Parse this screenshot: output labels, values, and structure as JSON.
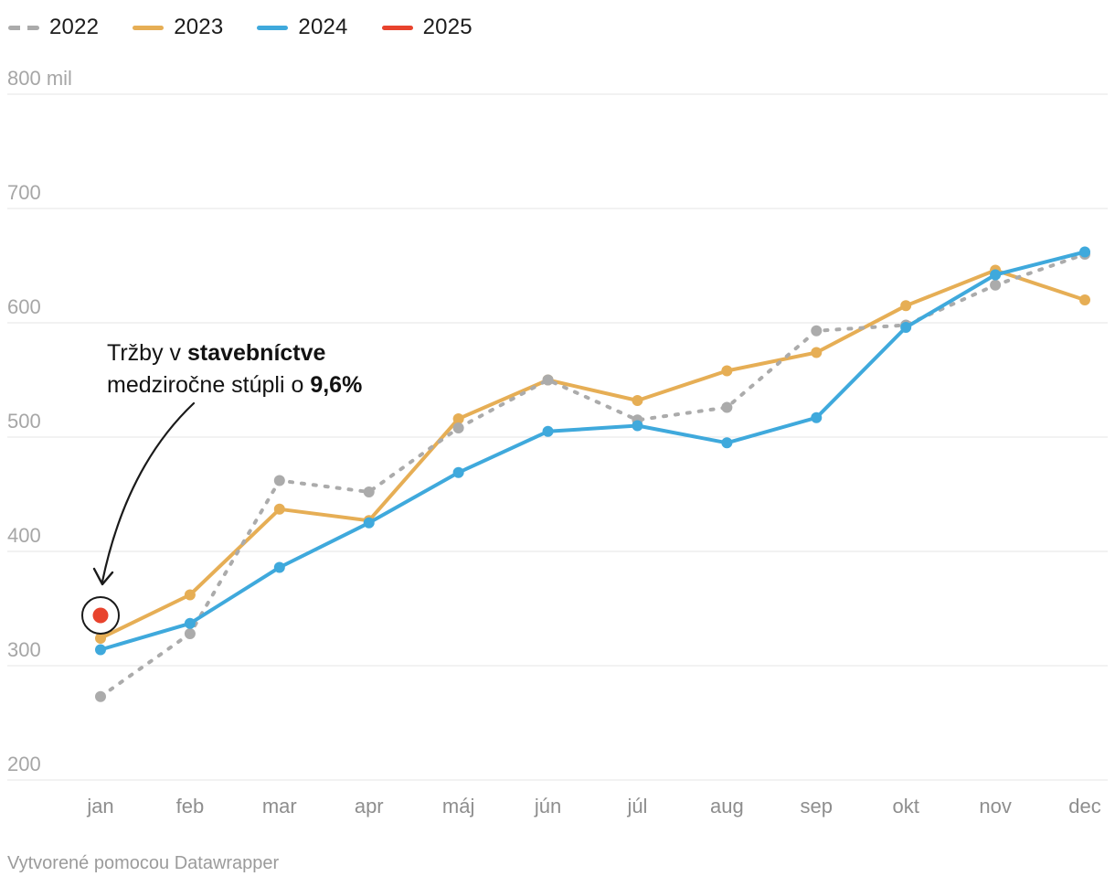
{
  "legend": {
    "items": [
      {
        "label": "2022",
        "color": "#ababab",
        "style": "dashed"
      },
      {
        "label": "2023",
        "color": "#e6ae55",
        "style": "solid"
      },
      {
        "label": "2024",
        "color": "#3fa9dc",
        "style": "solid"
      },
      {
        "label": "2025",
        "color": "#e8432d",
        "style": "solid"
      }
    ]
  },
  "annotation": {
    "line1_normal": "Tržby v ",
    "line1_bold": "stavebníctve",
    "line2_normal": "medziročne stúpli o ",
    "line2_bold": "9,6%"
  },
  "footer": {
    "text": "Vytvorené pomocou Datawrapper"
  },
  "chart_data": {
    "type": "line",
    "title": "",
    "xlabel": "",
    "ylabel": "",
    "unit": "mil",
    "categories": [
      "jan",
      "feb",
      "mar",
      "apr",
      "máj",
      "jún",
      "júl",
      "aug",
      "sep",
      "okt",
      "nov",
      "dec"
    ],
    "y_axis": {
      "tick_values": [
        800,
        700,
        600,
        500,
        400,
        300,
        200
      ],
      "tick_labels": [
        "800 mil",
        "700",
        "600",
        "500",
        "400",
        "300",
        "200"
      ]
    },
    "ylim": [
      200,
      800
    ],
    "grid": true,
    "legend_position": "top-left",
    "series": [
      {
        "name": "2022",
        "color": "#ababab",
        "dashed": true,
        "values": [
          273,
          328,
          462,
          452,
          508,
          550,
          515,
          526,
          593,
          598,
          633,
          660
        ]
      },
      {
        "name": "2023",
        "color": "#e6ae55",
        "dashed": false,
        "values": [
          324,
          362,
          437,
          427,
          516,
          550,
          532,
          558,
          574,
          615,
          646,
          620
        ]
      },
      {
        "name": "2024",
        "color": "#3fa9dc",
        "dashed": false,
        "values": [
          314,
          337,
          386,
          425,
          469,
          505,
          510,
          495,
          517,
          596,
          642,
          662
        ]
      },
      {
        "name": "2025",
        "color": "#e8432d",
        "dashed": false,
        "values": [
          344,
          null,
          null,
          null,
          null,
          null,
          null,
          null,
          null,
          null,
          null,
          null
        ]
      }
    ],
    "annotated_point": {
      "series": "2025",
      "category": "jan",
      "value": 344
    },
    "gridline_color": "#e6e6e6"
  }
}
